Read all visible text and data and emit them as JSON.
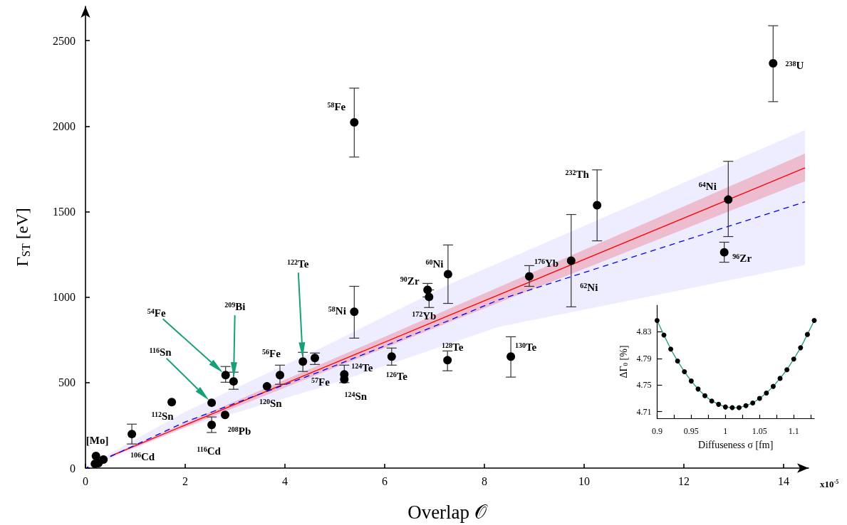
{
  "chart_data": [
    {
      "type": "scatter",
      "xlabel": "Overlap 𝒪",
      "ylabel": "Γ$_{ST}$ [eV]",
      "marker": "circle",
      "xlim": [
        0,
        14.5
      ],
      "ylim": [
        0,
        2700
      ],
      "xticks": [
        0,
        2,
        4,
        6,
        8,
        10,
        12,
        14
      ],
      "yticks": [
        0,
        500,
        1000,
        1500,
        2000,
        2500
      ],
      "series": [
        {
          "type": "scatter",
          "color": "#000000",
          "x": [
            0.21,
            0.36,
            0.19,
            0.26,
            0.93,
            1.73,
            2.53,
            2.53,
            2.8,
            2.81,
            2.97,
            3.64,
            3.9,
            4.36,
            4.6,
            5.19,
            5.19,
            5.39,
            5.39,
            6.14,
            6.86,
            6.89,
            7.27,
            7.26,
            8.53,
            8.9,
            9.74,
            10.26,
            12.89,
            12.81,
            13.79
          ],
          "values": [
            71,
            50,
            25,
            29,
            199,
            386,
            382,
            253,
            311,
            544,
            507,
            478,
            544,
            623,
            644,
            548,
            519,
            914,
            2022,
            652,
            1042,
            1001,
            1134,
            631,
            652,
            1121,
            1213,
            1537,
            1570,
            1262,
            2367
          ],
          "errors": [
            null,
            null,
            null,
            null,
            [
              141,
              257
            ],
            null,
            null,
            [
              208,
              299
            ],
            null,
            [
              502,
              594
            ],
            [
              461,
              561
            ],
            null,
            [
              490,
              602
            ],
            [
              565,
              677
            ],
            [
              606,
              673
            ],
            [
              500,
              602
            ],
            null,
            [
              760,
              1063
            ],
            [
              1819,
              2222
            ],
            [
              602,
              702
            ],
            [
              1001,
              1080
            ],
            [
              939,
              1042
            ],
            [
              963,
              1305
            ],
            [
              569,
              685
            ],
            [
              532,
              768
            ],
            [
              1063,
              1184
            ],
            [
              943,
              1483
            ],
            [
              1329,
              1744
            ],
            [
              1354,
              1794
            ],
            [
              1204,
              1321
            ],
            [
              2143,
              2587
            ]
          ]
        },
        {
          "type": "line",
          "color": "#ff0000",
          "marker": "none",
          "line_style": "solid",
          "x": [
            0.5,
            7.36,
            14.43
          ],
          "values": [
            70,
            901,
            1756
          ],
          "lower": [
            65,
            860,
            1678
          ],
          "upper": [
            75,
            940,
            1840
          ]
        },
        {
          "type": "line",
          "color": "#0000ff",
          "marker": "none",
          "line_style": "dashed",
          "x": [
            0.03,
            2.0,
            4.71,
            7.33,
            8.29,
            14.43
          ],
          "values": [
            4,
            270,
            565,
            868,
            984,
            1557
          ],
          "lower": [
            0,
            236,
            470,
            730,
            826,
            1188
          ],
          "upper": [
            10,
            330,
            700,
            1080,
            1200,
            1977
          ]
        }
      ],
      "annotations": [
        {
          "text": "[Mo]",
          "x": 0.21,
          "y": 71
        },
        {
          "text": "$^{106}$Cd",
          "x": 0.93,
          "y": 199
        },
        {
          "text": "$^{112}$Sn",
          "x": 1.73,
          "y": 386
        },
        "$^{116}$Sn",
        {
          "text": "$^{116}$Cd",
          "x": 2.53,
          "y": 253
        },
        {
          "text": "$^{208}$Pb",
          "x": 2.8,
          "y": 311
        },
        "$^{54}$Fe",
        "$^{209}$Bi",
        {
          "text": "$^{120}$Sn",
          "x": 3.64,
          "y": 478
        },
        {
          "text": "$^{56}$Fe",
          "x": 3.9,
          "y": 544
        },
        "$^{122}$Te",
        {
          "text": "$^{57}$Fe",
          "x": 4.6,
          "y": 644
        },
        {
          "text": "$^{124}$Te",
          "x": 5.19,
          "y": 548
        },
        {
          "text": "$^{124}$Sn",
          "x": 5.19,
          "y": 519
        },
        {
          "text": "$^{58}$Ni",
          "x": 5.39,
          "y": 914
        },
        {
          "text": "$^{58}$Fe",
          "x": 5.39,
          "y": 2022
        },
        {
          "text": "$^{126}$Te",
          "x": 6.14,
          "y": 652
        },
        {
          "text": "$^{90}$Zr",
          "x": 6.86,
          "y": 1042
        },
        {
          "text": "$^{172}$Yb",
          "x": 6.89,
          "y": 1001
        },
        {
          "text": "$^{60}$Ni",
          "x": 7.27,
          "y": 1134
        },
        {
          "text": "$^{128}$Te",
          "x": 7.26,
          "y": 631
        },
        {
          "text": "$^{130}$Te",
          "x": 8.53,
          "y": 652
        },
        {
          "text": "$^{176}$Yb",
          "x": 8.9,
          "y": 1121
        },
        {
          "text": "$^{62}$Ni",
          "x": 9.74,
          "y": 1213
        },
        {
          "text": "$^{232}$Th",
          "x": 10.26,
          "y": 1537
        },
        {
          "text": "$^{64}$Ni",
          "x": 12.89,
          "y": 1570
        },
        {
          "text": "$^{96}$Zr",
          "x": 12.81,
          "y": 1262
        },
        {
          "text": "$^{238}$U",
          "x": 13.79,
          "y": 2367
        },
        "x10$^{-5}$"
      ]
    },
    {
      "type": "scatter",
      "xlabel": "Diffuseness σ [fm]",
      "ylabel": "ΔΓ$_{0}$ [%]",
      "marker": "circle",
      "xlim": [
        0.9,
        1.13
      ],
      "ylim": [
        4.7,
        4.87
      ],
      "xticks": [
        0.9,
        {
          "value": 0.925,
          "label": null
        },
        0.95,
        {
          "value": 0.975,
          "label": null
        },
        1,
        {
          "value": 1.025,
          "label": null
        },
        1.05,
        {
          "value": 1.075,
          "label": null
        },
        1.1,
        {
          "value": 1.125,
          "label": null
        }
      ],
      "yticks": [
        4.71,
        4.75,
        4.79,
        4.83
      ],
      "series": [
        {
          "type": "line",
          "color": "#1b9e77",
          "marker": "none",
          "line_style": "solid",
          "x": [
            0.9,
            0.91,
            0.92,
            0.93,
            0.94,
            0.95,
            0.96,
            0.97,
            0.98,
            0.99,
            1.0,
            1.01,
            1.02,
            1.03,
            1.04,
            1.05,
            1.06,
            1.07,
            1.08,
            1.09,
            1.1,
            1.11,
            1.12,
            1.13
          ],
          "values": [
            4.847,
            4.825,
            4.804,
            4.786,
            4.77,
            4.756,
            4.744,
            4.734,
            4.726,
            4.721,
            4.717,
            4.716,
            4.716,
            4.719,
            4.723,
            4.73,
            4.738,
            4.748,
            4.76,
            4.773,
            4.789,
            4.806,
            4.826,
            4.847
          ]
        },
        {
          "type": "scatter",
          "color": "#000000",
          "x": [
            0.9,
            0.91,
            0.92,
            0.93,
            0.94,
            0.95,
            0.96,
            0.97,
            0.98,
            0.99,
            1.0,
            1.01,
            1.02,
            1.03,
            1.04,
            1.05,
            1.06,
            1.07,
            1.08,
            1.09,
            1.1,
            1.11,
            1.12,
            1.13
          ],
          "values": [
            4.847,
            4.825,
            4.804,
            4.786,
            4.77,
            4.756,
            4.744,
            4.734,
            4.726,
            4.721,
            4.717,
            4.716,
            4.716,
            4.719,
            4.723,
            4.73,
            4.738,
            4.748,
            4.76,
            4.773,
            4.789,
            4.806,
            4.826,
            4.847
          ]
        }
      ]
    }
  ]
}
